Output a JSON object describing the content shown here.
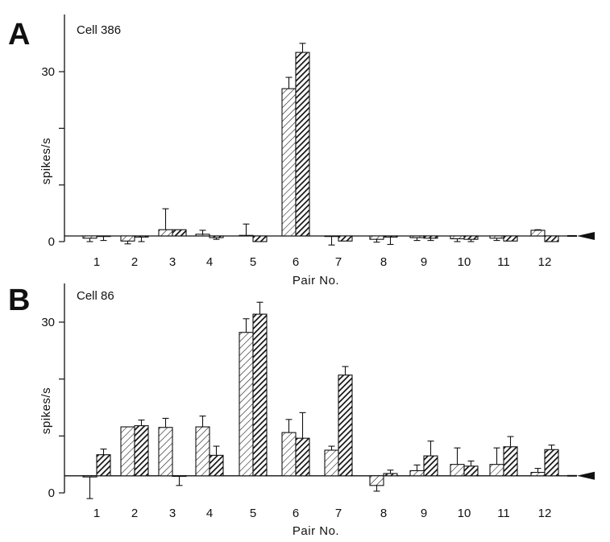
{
  "chart_data": [
    {
      "type": "bar",
      "panel": "A",
      "title": "Cell 386",
      "xlabel": "Pair No.",
      "ylabel": "spikes/s",
      "ylim": [
        0,
        34
      ],
      "yticks": [
        0,
        30
      ],
      "baseline": 1.0,
      "categories": [
        "1",
        "2",
        "3",
        "4",
        "5",
        "6",
        "7",
        "8",
        "9",
        "10",
        "11",
        "12"
      ],
      "series": [
        {
          "values": [
            0.6,
            0.1,
            2.1,
            1.3,
            1.1,
            27.0,
            0.9,
            0.4,
            0.7,
            0.5,
            0.6,
            2.0
          ],
          "errors": [
            0.6,
            0.5,
            3.7,
            0.7,
            2.0,
            2.0,
            1.5,
            0.5,
            0.5,
            0.5,
            0.4,
            0.1
          ]
        },
        {
          "values": [
            0.9,
            0.8,
            2.1,
            0.7,
            0.0,
            33.4,
            0.1,
            0.8,
            0.6,
            0.4,
            0.1,
            0.0
          ],
          "errors": [
            0.7,
            0.8,
            0.0,
            0.3,
            0.0,
            1.6,
            0.0,
            1.3,
            0.4,
            0.4,
            0.0,
            0.0
          ]
        }
      ],
      "baseline_marker": "arrowhead at right end of baseline"
    },
    {
      "type": "bar",
      "panel": "B",
      "title": "Cell 86",
      "xlabel": "Pair No.",
      "ylabel": "spikes/s",
      "ylim": [
        0,
        34
      ],
      "yticks": [
        0,
        30
      ],
      "baseline": 3.0,
      "categories": [
        "1",
        "2",
        "3",
        "4",
        "5",
        "6",
        "7",
        "8",
        "9",
        "10",
        "11",
        "12"
      ],
      "series": [
        {
          "values": [
            2.8,
            11.6,
            11.5,
            11.6,
            28.2,
            10.6,
            7.5,
            1.3,
            3.9,
            5.0,
            5.0,
            3.6
          ],
          "errors": [
            3.8,
            0.0,
            1.6,
            1.9,
            2.4,
            2.3,
            0.7,
            1.0,
            1.0,
            2.9,
            2.9,
            0.7
          ],
          "note": "pair 3 second bar absent; baseline-level error bar only"
        },
        {
          "values": [
            6.7,
            11.8,
            2.9,
            6.6,
            31.4,
            9.6,
            20.7,
            3.4,
            6.5,
            4.7,
            8.1,
            7.6
          ],
          "errors": [
            1.0,
            1.0,
            1.6,
            1.6,
            2.1,
            4.5,
            1.5,
            0.6,
            2.6,
            0.9,
            1.8,
            0.8
          ]
        }
      ],
      "baseline_marker": "arrowhead at right end of baseline"
    }
  ]
}
